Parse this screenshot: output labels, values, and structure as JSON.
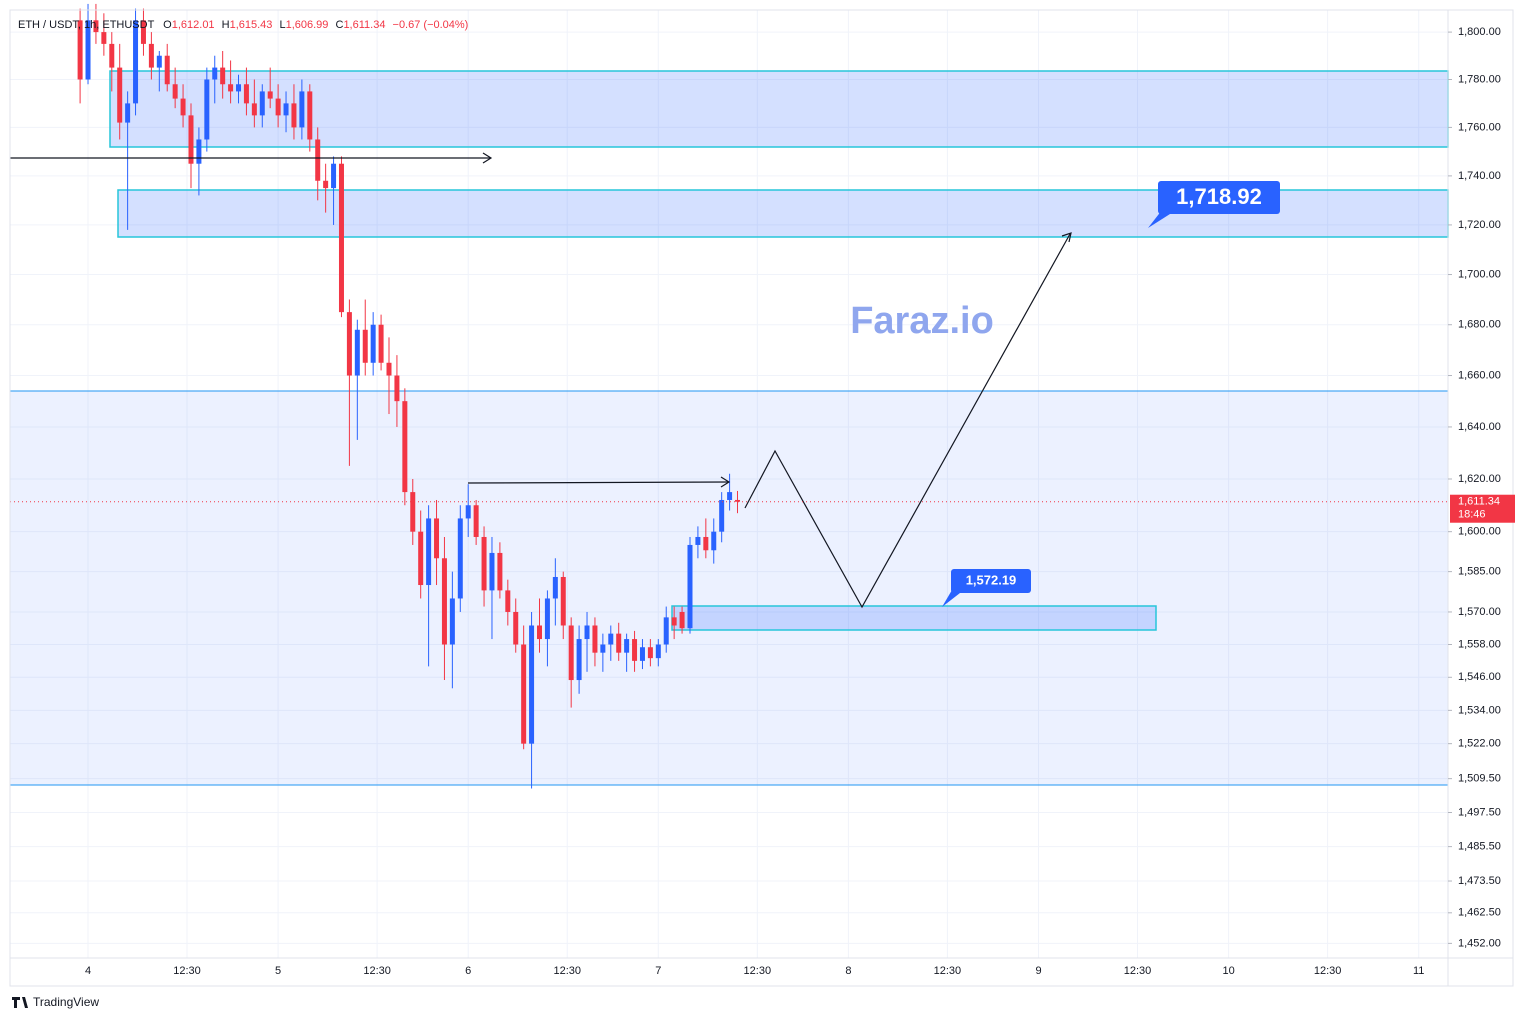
{
  "chart_data": {
    "type": "candlestick",
    "symbol": "ETH / USDT, 1h, ETHUSDT",
    "ohlc_legend": [
      {
        "prefix": "O",
        "text": "1,612.01"
      },
      {
        "prefix": "H",
        "text": "1,615.43"
      },
      {
        "prefix": "L",
        "text": "1,606.99"
      },
      {
        "prefix": "C",
        "text": "1,611.34"
      }
    ],
    "change": "−0.67 (−0.04%)",
    "watermark": "Faraz.io",
    "annotations": [
      "1,718.92",
      "1,572.19"
    ],
    "current_price": {
      "value": 1611.34,
      "label": "1,611.34"
    },
    "countdown": "18:46",
    "brand": "TradingView",
    "log_scale": true,
    "grid": true,
    "up_color": "#2962ff",
    "down_color": "#f23645",
    "x": [
      -1,
      0,
      1,
      2,
      3,
      4,
      5,
      6,
      7,
      8,
      9,
      10,
      11,
      12,
      13,
      14,
      15,
      16,
      17,
      18,
      19,
      20,
      21,
      22,
      23,
      24,
      25,
      26,
      27,
      28,
      29,
      30,
      31,
      32,
      33,
      34,
      35,
      36,
      37,
      38,
      39,
      40,
      41,
      42,
      43,
      44,
      45,
      46,
      47,
      48,
      49,
      50,
      51,
      52,
      53,
      54,
      55,
      56,
      57,
      58,
      59,
      60,
      61,
      62,
      63,
      64,
      65,
      66,
      67,
      68,
      69,
      70,
      71,
      72,
      73,
      74,
      75,
      76,
      77,
      78,
      79,
      80,
      81,
      82
    ],
    "open": [
      1805,
      1780,
      1805,
      1800,
      1795,
      1785,
      1762,
      1770,
      1805,
      1795,
      1785,
      1790,
      1778,
      1772,
      1765,
      1745,
      1755,
      1780,
      1785,
      1778,
      1775,
      1778,
      1770,
      1765,
      1775,
      1772,
      1765,
      1770,
      1760,
      1775,
      1755,
      1738,
      1735,
      1745,
      1685,
      1660,
      1678,
      1665,
      1680,
      1665,
      1660,
      1650,
      1615,
      1600,
      1580,
      1605,
      1590,
      1558,
      1575,
      1605,
      1610,
      1598,
      1578,
      1592,
      1578,
      1570,
      1558,
      1522,
      1565,
      1560,
      1575,
      1583,
      1565,
      1545,
      1560,
      1565,
      1555,
      1558,
      1562,
      1555,
      1560,
      1552,
      1557,
      1553,
      1558,
      1568,
      1570,
      1564,
      1595,
      1598,
      1593,
      1600,
      1612,
      1612.01
    ],
    "high": [
      1810,
      1812,
      1812,
      1808,
      1800,
      1795,
      1775,
      1810,
      1810,
      1800,
      1792,
      1795,
      1785,
      1778,
      1770,
      1760,
      1785,
      1790,
      1792,
      1788,
      1782,
      1785,
      1780,
      1778,
      1785,
      1778,
      1775,
      1778,
      1780,
      1778,
      1760,
      1745,
      1748,
      1748,
      1690,
      1682,
      1690,
      1685,
      1684,
      1675,
      1668,
      1655,
      1620,
      1608,
      1610,
      1612,
      1598,
      1585,
      1610,
      1618,
      1612,
      1602,
      1598,
      1596,
      1582,
      1575,
      1565,
      1570,
      1575,
      1578,
      1590,
      1585,
      1568,
      1565,
      1570,
      1568,
      1562,
      1565,
      1566,
      1562,
      1563,
      1560,
      1560,
      1560,
      1572,
      1572,
      1572,
      1598,
      1602,
      1605,
      1605,
      1615,
      1622,
      1615.43
    ],
    "low": [
      1770,
      1778,
      1795,
      1790,
      1775,
      1755,
      1718,
      1765,
      1790,
      1780,
      1775,
      1775,
      1768,
      1760,
      1735,
      1732,
      1750,
      1770,
      1772,
      1770,
      1770,
      1765,
      1760,
      1760,
      1768,
      1760,
      1758,
      1755,
      1755,
      1750,
      1730,
      1725,
      1720,
      1683,
      1625,
      1635,
      1660,
      1660,
      1662,
      1645,
      1640,
      1610,
      1595,
      1575,
      1550,
      1580,
      1545,
      1542,
      1570,
      1598,
      1595,
      1572,
      1560,
      1575,
      1565,
      1555,
      1520,
      1506,
      1555,
      1550,
      1565,
      1560,
      1535,
      1540,
      1548,
      1550,
      1548,
      1552,
      1552,
      1548,
      1548,
      1549,
      1550,
      1550,
      1555,
      1560,
      1562,
      1562,
      1590,
      1590,
      1588,
      1596,
      1608,
      1606.99
    ],
    "close": [
      1780,
      1805,
      1800,
      1795,
      1785,
      1762,
      1770,
      1805,
      1795,
      1785,
      1790,
      1778,
      1772,
      1765,
      1745,
      1755,
      1780,
      1785,
      1778,
      1775,
      1778,
      1770,
      1765,
      1775,
      1772,
      1765,
      1770,
      1760,
      1775,
      1755,
      1738,
      1735,
      1745,
      1685,
      1660,
      1678,
      1665,
      1680,
      1665,
      1660,
      1650,
      1615,
      1600,
      1580,
      1605,
      1590,
      1558,
      1575,
      1605,
      1610,
      1598,
      1578,
      1592,
      1578,
      1570,
      1558,
      1522,
      1565,
      1560,
      1575,
      1583,
      1565,
      1545,
      1560,
      1565,
      1555,
      1558,
      1562,
      1555,
      1560,
      1552,
      1557,
      1553,
      1558,
      1568,
      1565,
      1564,
      1595,
      1598,
      1593,
      1600,
      1612,
      1615,
      1611.34
    ],
    "xlim": [
      -9.85,
      171.7
    ],
    "xticks": [
      {
        "value": 0,
        "label": "4"
      },
      {
        "value": 12.5,
        "label": "12:30"
      },
      {
        "value": 24,
        "label": "5"
      },
      {
        "value": 36.5,
        "label": "12:30"
      },
      {
        "value": 48,
        "label": "6"
      },
      {
        "value": 60.5,
        "label": "12:30"
      },
      {
        "value": 72,
        "label": "7"
      },
      {
        "value": 84.5,
        "label": "12:30"
      },
      {
        "value": 96,
        "label": "8"
      },
      {
        "value": 108.5,
        "label": "12:30"
      },
      {
        "value": 120,
        "label": "9"
      },
      {
        "value": 132.5,
        "label": "12:30"
      },
      {
        "value": 144,
        "label": "10"
      },
      {
        "value": 156.5,
        "label": "12:30"
      },
      {
        "value": 168,
        "label": "11"
      }
    ],
    "ylim": [
      1447,
      1809.4
    ],
    "yticks": [
      {
        "value": 1800,
        "label": "1,800.00"
      },
      {
        "value": 1780,
        "label": "1,780.00"
      },
      {
        "value": 1760,
        "label": "1,760.00"
      },
      {
        "value": 1740,
        "label": "1,740.00"
      },
      {
        "value": 1720,
        "label": "1,720.00"
      },
      {
        "value": 1700,
        "label": "1,700.00"
      },
      {
        "value": 1680,
        "label": "1,680.00"
      },
      {
        "value": 1660,
        "label": "1,660.00"
      },
      {
        "value": 1640,
        "label": "1,640.00"
      },
      {
        "value": 1620,
        "label": "1,620.00"
      },
      {
        "value": 1600,
        "label": "1,600.00"
      },
      {
        "value": 1585,
        "label": "1,585.00"
      },
      {
        "value": 1570,
        "label": "1,570.00"
      },
      {
        "value": 1558,
        "label": "1,558.00"
      },
      {
        "value": 1546,
        "label": "1,546.00"
      },
      {
        "value": 1534,
        "label": "1,534.00"
      },
      {
        "value": 1522,
        "label": "1,522.00"
      },
      {
        "value": 1509.5,
        "label": "1,509.50"
      },
      {
        "value": 1497.5,
        "label": "1,497.50"
      },
      {
        "value": 1485.5,
        "label": "1,485.50"
      },
      {
        "value": 1473.5,
        "label": "1,473.50"
      },
      {
        "value": 1462.5,
        "label": "1,462.50"
      },
      {
        "value": 1452,
        "label": "1,452.00"
      }
    ]
  }
}
